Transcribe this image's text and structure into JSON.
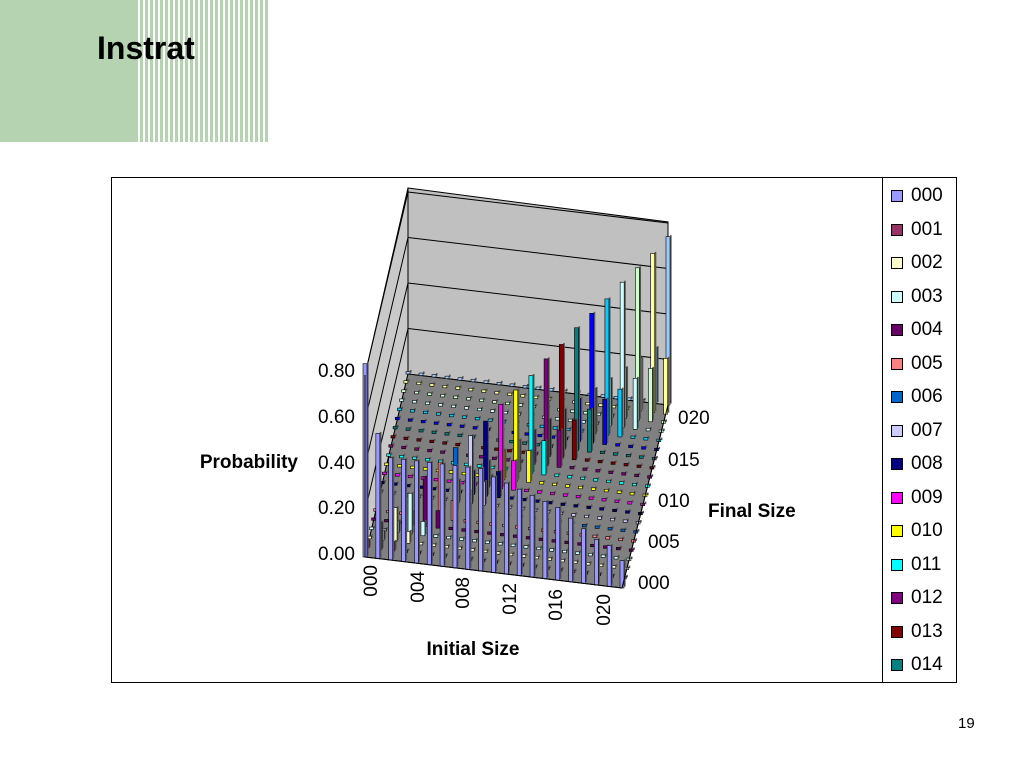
{
  "slide": {
    "title": "Instrat",
    "page_number": "19"
  },
  "chart_data": {
    "type": "bar3d",
    "title": "",
    "ylabel": "Probability",
    "xlabel": "Initial Size",
    "zlabel": "Final Size",
    "ylim": [
      0,
      0.8
    ],
    "y_ticks": [
      "0.00",
      "0.20",
      "0.40",
      "0.60",
      "0.80"
    ],
    "x_ticks": [
      "000",
      "004",
      "008",
      "012",
      "016",
      "020"
    ],
    "z_ticks": [
      "000",
      "005",
      "010",
      "015",
      "020"
    ],
    "series_names": [
      "000",
      "001",
      "002",
      "003",
      "004",
      "005",
      "006",
      "007",
      "008",
      "009",
      "010",
      "011",
      "012",
      "013",
      "014"
    ],
    "series_colors": [
      "#9999ff",
      "#993366",
      "#ffffcc",
      "#ccffff",
      "#660066",
      "#ff8080",
      "#0066cc",
      "#ccccff",
      "#000080",
      "#ff00ff",
      "#ffff00",
      "#00ffff",
      "#800080",
      "#800000",
      "#008080",
      "#0000ff",
      "#00ccff",
      "#ccffff",
      "#ccffcc",
      "#ffff99",
      "#99ccff"
    ],
    "foreground_values": [
      0.85,
      0.55,
      0.45,
      0.45,
      0.45,
      0.45,
      0.45,
      0.45,
      0.45,
      0.45,
      0.42,
      0.4,
      0.38,
      0.36,
      0.34,
      0.32,
      0.28,
      0.24,
      0.2,
      0.18,
      0.12
    ],
    "ridge_values": [
      0.1,
      0.12,
      0.15,
      0.18,
      0.22,
      0.25,
      0.28,
      0.3,
      0.33,
      0.37,
      0.4,
      0.43,
      0.47,
      0.5,
      0.54,
      0.57,
      0.6,
      0.64,
      0.67,
      0.7,
      0.74
    ],
    "grid": true,
    "legend_position": "right"
  }
}
